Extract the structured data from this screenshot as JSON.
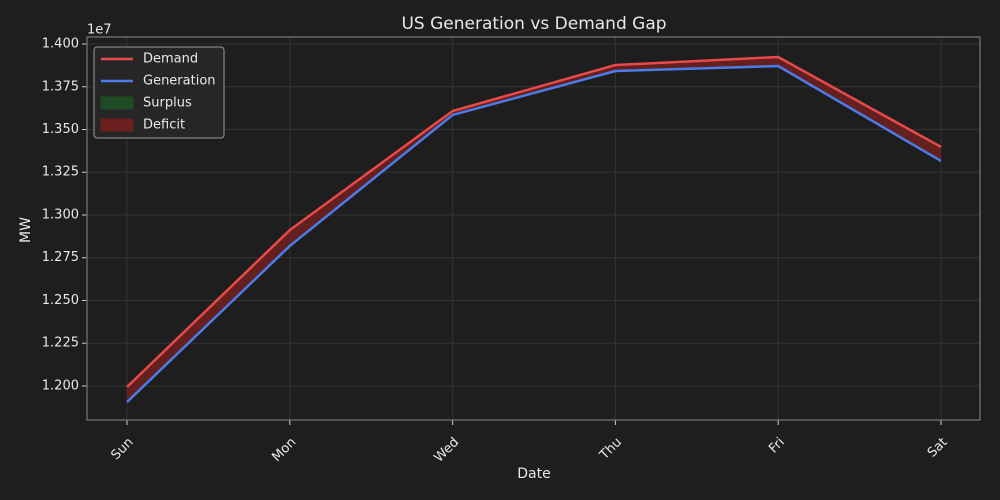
{
  "chart_data": {
    "type": "line",
    "title": "US Generation vs Demand Gap",
    "xlabel": "Date",
    "ylabel": "MW",
    "y_multiplier": "1e7",
    "categories": [
      "Sun",
      "Mon",
      "Wed",
      "Thu",
      "Fri",
      "Sat"
    ],
    "series": [
      {
        "name": "Demand",
        "color": "#e84a4a",
        "values": [
          11994000,
          12912000,
          13608000,
          13877000,
          13924000,
          13398000
        ]
      },
      {
        "name": "Generation",
        "color": "#4a7de8",
        "values": [
          11906000,
          12819000,
          13585000,
          13842000,
          13871000,
          13316000
        ]
      }
    ],
    "fills": [
      {
        "name": "Surplus",
        "color": "#1f4a24"
      },
      {
        "name": "Deficit",
        "color": "#6b1f1f"
      }
    ],
    "ylim": [
      11801000,
      14041000
    ],
    "yticks": [
      {
        "value": 12000000,
        "label": "1.200"
      },
      {
        "value": 12250000,
        "label": "1.225"
      },
      {
        "value": 12500000,
        "label": "1.250"
      },
      {
        "value": 12750000,
        "label": "1.275"
      },
      {
        "value": 13000000,
        "label": "1.300"
      },
      {
        "value": 13250000,
        "label": "1.325"
      },
      {
        "value": 13500000,
        "label": "1.350"
      },
      {
        "value": 13750000,
        "label": "1.375"
      },
      {
        "value": 14000000,
        "label": "1.400"
      }
    ],
    "grid": true,
    "legend": "upper left"
  }
}
